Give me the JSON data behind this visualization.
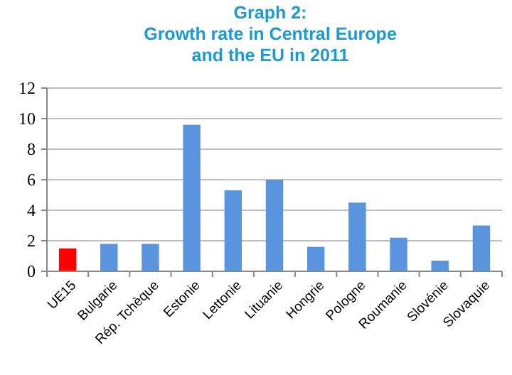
{
  "chart_data": {
    "type": "bar",
    "title": "Graph 2:\nGrowth rate in Central Europe\nand the EU in 2011",
    "categories": [
      "UE15",
      "Bulgarie",
      "Rép. Tchèque",
      "Estonie",
      "Lettonie",
      "Lituanie",
      "Hongrie",
      "Pologne",
      "Roumanie",
      "Slovénie",
      "Slovaquie"
    ],
    "values": [
      1.5,
      1.8,
      1.8,
      9.6,
      5.3,
      6.0,
      1.6,
      4.5,
      2.2,
      0.7,
      3.0
    ],
    "colors": [
      "#ff0000",
      "#5b94de",
      "#5b94de",
      "#5b94de",
      "#5b94de",
      "#5b94de",
      "#5b94de",
      "#5b94de",
      "#5b94de",
      "#5b94de",
      "#5b94de"
    ],
    "ylim": [
      0,
      12
    ],
    "yticks": [
      0,
      2,
      4,
      6,
      8,
      10,
      12
    ],
    "grid": "y"
  }
}
